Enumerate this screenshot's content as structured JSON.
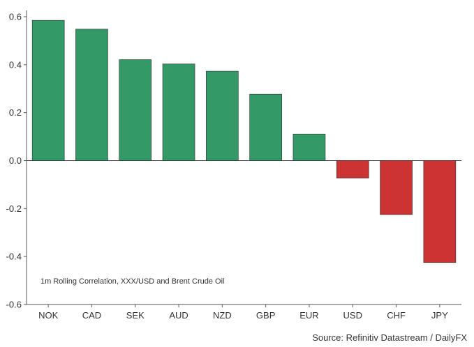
{
  "chart_data": {
    "type": "bar",
    "categories": [
      "NOK",
      "CAD",
      "SEK",
      "AUD",
      "NZD",
      "GBP",
      "EUR",
      "USD",
      "CHF",
      "JPY"
    ],
    "values": [
      0.585,
      0.548,
      0.421,
      0.403,
      0.373,
      0.277,
      0.111,
      -0.073,
      -0.225,
      -0.425
    ],
    "ylim": [
      -0.6,
      0.6
    ],
    "yticks": [
      -0.6,
      -0.4,
      -0.2,
      0.0,
      0.2,
      0.4,
      0.6
    ],
    "ytick_labels": [
      "-0.6",
      "-0.4",
      "-0.2",
      "0.0",
      "0.2",
      "0.4",
      "0.6"
    ],
    "annotation": "1m Rolling Correlation, XXX/USD and Brent Crude Oil",
    "grid": false,
    "colors": {
      "positive": "#339966",
      "negative": "#cc3333",
      "axis": "#555555"
    }
  },
  "source": "Source: Refinitiv Datastream / DailyFX"
}
